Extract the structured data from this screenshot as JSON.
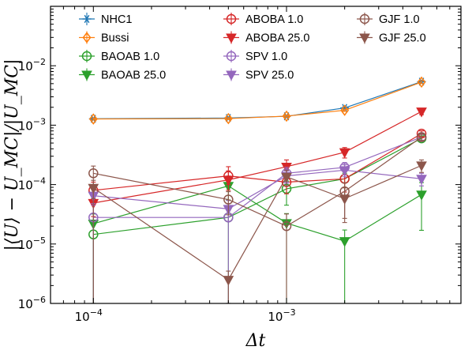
{
  "chart_data": {
    "type": "scatter",
    "title": "",
    "xlabel": "Δt",
    "ylabel": "|⟨U⟩ − U_MC|/|U_MC|",
    "xscale": "log",
    "yscale": "log",
    "xlim": [
      6e-05,
      0.008
    ],
    "ylim": [
      1e-06,
      0.1
    ],
    "grid": false,
    "legend_position": "top",
    "legend_columns": 3,
    "x_ticks": [
      {
        "value": 0.0001,
        "base": "10",
        "exp": "−4"
      },
      {
        "value": 0.001,
        "base": "10",
        "exp": "−3"
      }
    ],
    "y_ticks": [
      {
        "value": 1e-06,
        "base": "10",
        "exp": "−6"
      },
      {
        "value": 1e-05,
        "base": "10",
        "exp": "−5"
      },
      {
        "value": 0.0001,
        "base": "10",
        "exp": "−4"
      },
      {
        "value": 0.001,
        "base": "10",
        "exp": "−3"
      },
      {
        "value": 0.01,
        "base": "10",
        "exp": "−2"
      }
    ],
    "x": [
      0.0001,
      0.0005,
      0.001,
      0.002,
      0.005
    ],
    "series": [
      {
        "name": "NHC1",
        "color": "#1f77b4",
        "marker": "asterisk",
        "values": [
          0.00128,
          0.00132,
          0.00141,
          0.00195,
          0.0054
        ],
        "err_lo": [
          5e-05,
          5e-05,
          6e-05,
          8e-05,
          0.0003
        ],
        "err_hi": [
          5e-05,
          5e-05,
          6e-05,
          8e-05,
          0.0003
        ]
      },
      {
        "name": "Bussi",
        "color": "#ff7f0e",
        "marker": "diamond",
        "values": [
          0.00127,
          0.00129,
          0.00142,
          0.00178,
          0.0053
        ],
        "err_lo": [
          5e-05,
          5e-05,
          6e-05,
          8e-05,
          0.0003
        ],
        "err_hi": [
          5e-05,
          5e-05,
          6e-05,
          8e-05,
          0.0003
        ]
      },
      {
        "name": "BAOAB 1.0",
        "color": "#2ca02c",
        "marker": "circle-open",
        "values": [
          1.45e-05,
          2.8e-05,
          8.5e-05,
          0.000125,
          0.0006
        ],
        "err_lo": [
          1.35e-05,
          2.7e-05,
          4e-05,
          6e-05,
          6e-05
        ],
        "err_hi": [
          1e-05,
          2e-05,
          3e-05,
          3e-05,
          6e-05
        ]
      },
      {
        "name": "BAOAB 25.0",
        "color": "#2ca02c",
        "marker": "triangle-down",
        "values": [
          2.2e-05,
          9.5e-05,
          2.25e-05,
          1.12e-05,
          6.8e-05
        ],
        "err_lo": [
          2.1e-05,
          4e-05,
          2.2e-05,
          1.1e-05,
          5.1e-05
        ],
        "err_hi": [
          1e-05,
          3e-05,
          1e-05,
          6e-06,
          4e-05
        ]
      },
      {
        "name": "ABOBA 1.0",
        "color": "#d62728",
        "marker": "circle-open",
        "values": [
          8e-05,
          0.00014,
          0.00011,
          0.000125,
          0.00072
        ],
        "err_lo": [
          3e-05,
          4e-05,
          4e-05,
          5e-05,
          8e-05
        ],
        "err_hi": [
          3e-05,
          6e-05,
          3e-05,
          4e-05,
          8e-05
        ]
      },
      {
        "name": "ABOBA 25.0",
        "color": "#d62728",
        "marker": "triangle-down",
        "values": [
          4.9e-05,
          0.00012,
          0.0002,
          0.00035,
          0.0017
        ],
        "err_lo": [
          2e-05,
          4e-05,
          5e-05,
          7e-05,
          0.0002
        ],
        "err_hi": [
          2e-05,
          5e-05,
          6e-05,
          7e-05,
          0.0002
        ]
      },
      {
        "name": "SPV 1.0",
        "color": "#9467bd",
        "marker": "circle-open",
        "values": [
          2.8e-05,
          2.8e-05,
          0.000155,
          0.000195,
          0.00063
        ],
        "err_lo": [
          2.7e-05,
          2.7e-05,
          5e-05,
          5e-05,
          7e-05
        ],
        "err_hi": [
          2e-05,
          2e-05,
          4e-05,
          4e-05,
          7e-05
        ]
      },
      {
        "name": "SPV 25.0",
        "color": "#9467bd",
        "marker": "triangle-down",
        "values": [
          6.5e-05,
          3.9e-05,
          0.00014,
          0.000175,
          0.000125
        ],
        "err_lo": [
          2e-05,
          1.5e-05,
          3e-05,
          4e-05,
          3e-05
        ],
        "err_hi": [
          2e-05,
          1.5e-05,
          3e-05,
          4e-05,
          3e-05
        ]
      },
      {
        "name": "GJF 1.0",
        "color": "#8c564b",
        "marker": "circle-open",
        "values": [
          0.000155,
          5.6e-05,
          2e-05,
          7.7e-05,
          0.00063
        ],
        "err_lo": [
          0.0001545,
          2.5e-05,
          1.95e-05,
          5e-05,
          8e-05
        ],
        "err_hi": [
          5e-05,
          2e-05,
          1.2e-05,
          3e-05,
          8e-05
        ]
      },
      {
        "name": "GJF 25.0",
        "color": "#8c564b",
        "marker": "triangle-down",
        "values": [
          8.8e-05,
          2.5e-06,
          0.000135,
          5.8e-05,
          0.00021
        ],
        "err_lo": [
          3e-05,
          1.5e-06,
          4e-05,
          3.5e-05,
          5e-05
        ],
        "err_hi": [
          3e-05,
          1e-06,
          4e-05,
          3e-05,
          5e-05
        ]
      }
    ]
  }
}
